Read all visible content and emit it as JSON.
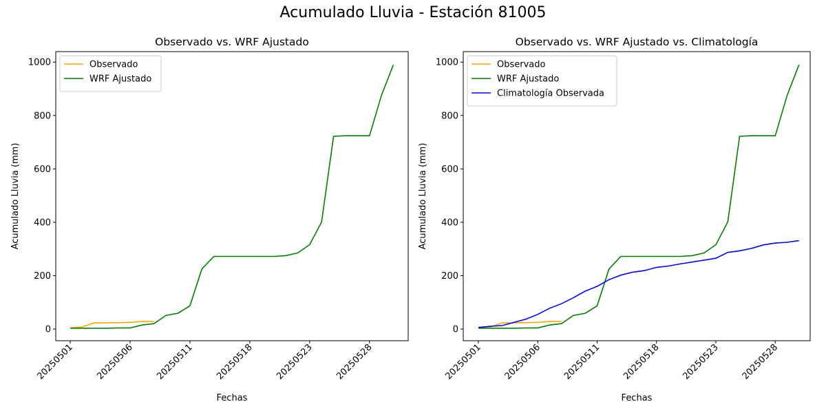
{
  "suptitle": "Acumulado Lluvia - Estación 81005",
  "chart_data": [
    {
      "type": "line",
      "title": "Observado vs. WRF Ajustado",
      "xlabel": "Fechas",
      "ylabel": "Acumulado Lluvia (mm)",
      "ylim": [
        -45,
        1040
      ],
      "yticks": [
        0,
        200,
        400,
        600,
        800,
        1000
      ],
      "xtick_labels": [
        "20250501",
        "20250506",
        "20250511",
        "20250518",
        "20250523",
        "20250528"
      ],
      "xtick_index": [
        0,
        5,
        10,
        15,
        20,
        25
      ],
      "legend": "top-left",
      "series": [
        {
          "name": "Observado",
          "color": "#ffa500",
          "values": [
            4,
            8,
            23,
            23,
            24,
            25,
            28,
            28
          ]
        },
        {
          "name": "WRF Ajustado",
          "color": "#008000",
          "values": [
            3,
            3,
            3,
            3,
            4,
            4,
            15,
            20,
            51,
            59,
            87,
            225,
            272,
            272,
            272,
            272,
            272,
            272,
            275,
            285,
            316,
            401,
            722,
            724,
            724,
            724,
            875,
            990
          ]
        }
      ]
    },
    {
      "type": "line",
      "title": "Observado vs. WRF Ajustado vs. Climatología",
      "xlabel": "Fechas",
      "ylabel": "Acumulado Lluvia (mm)",
      "ylim": [
        -45,
        1040
      ],
      "yticks": [
        0,
        200,
        400,
        600,
        800,
        1000
      ],
      "xtick_labels": [
        "20250501",
        "20250506",
        "20250511",
        "20250518",
        "20250523",
        "20250528"
      ],
      "xtick_index": [
        0,
        5,
        10,
        15,
        20,
        25
      ],
      "legend": "top-left",
      "series": [
        {
          "name": "Observado",
          "color": "#ffa500",
          "values": [
            4,
            8,
            23,
            23,
            24,
            25,
            28,
            28
          ]
        },
        {
          "name": "WRF Ajustado",
          "color": "#008000",
          "values": [
            3,
            3,
            3,
            3,
            4,
            4,
            15,
            20,
            51,
            59,
            87,
            225,
            272,
            272,
            272,
            272,
            272,
            272,
            275,
            285,
            316,
            401,
            722,
            724,
            724,
            724,
            875,
            990
          ]
        },
        {
          "name": "Climatología Observada",
          "color": "#0000ff",
          "values": [
            6,
            10,
            13,
            25,
            37,
            55,
            78,
            95,
            117,
            142,
            160,
            185,
            202,
            213,
            219,
            231,
            236,
            244,
            251,
            258,
            265,
            287,
            293,
            302,
            315,
            322,
            325,
            331
          ]
        }
      ]
    }
  ]
}
